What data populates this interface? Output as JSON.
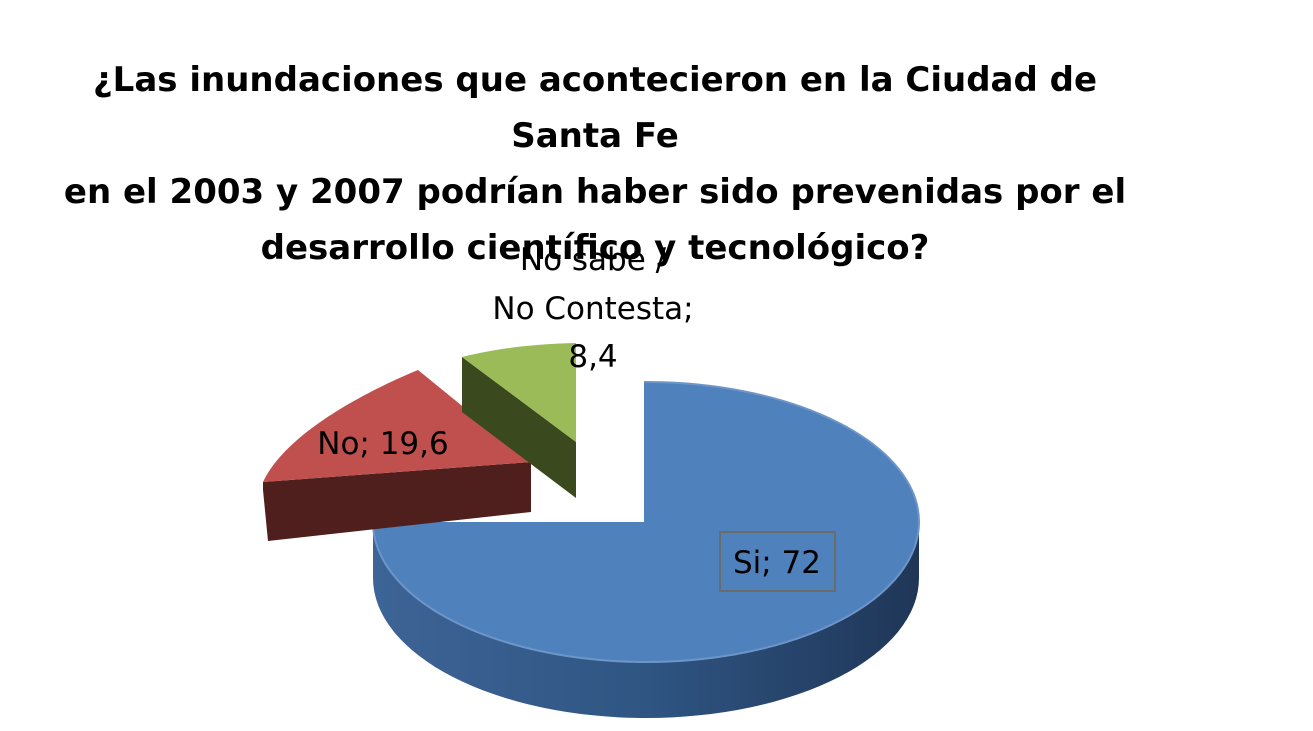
{
  "chart_data": {
    "type": "pie",
    "title_lines": [
      "¿Las inundaciones que acontecieron en la Ciudad de Santa Fe",
      "en el 2003 y 2007 podrían haber sido prevenidas por el",
      "desarrollo científico y tecnológico?"
    ],
    "slices": [
      {
        "category": "Si",
        "value": 72,
        "label": "Si; 72",
        "color": "#4f81bd",
        "side_color": "#2c4d75"
      },
      {
        "category": "No",
        "value": 19.6,
        "label": "No; 19,6",
        "color": "#c0504d",
        "side_color": "#632523"
      },
      {
        "category": "No sabe / No Contesta",
        "value": 8.4,
        "label_lines": [
          "No sabe /",
          "No Contesta;",
          "8,4"
        ],
        "color": "#9bbb59",
        "side_color": "#4f6228"
      }
    ],
    "style": "3d-exploded"
  }
}
